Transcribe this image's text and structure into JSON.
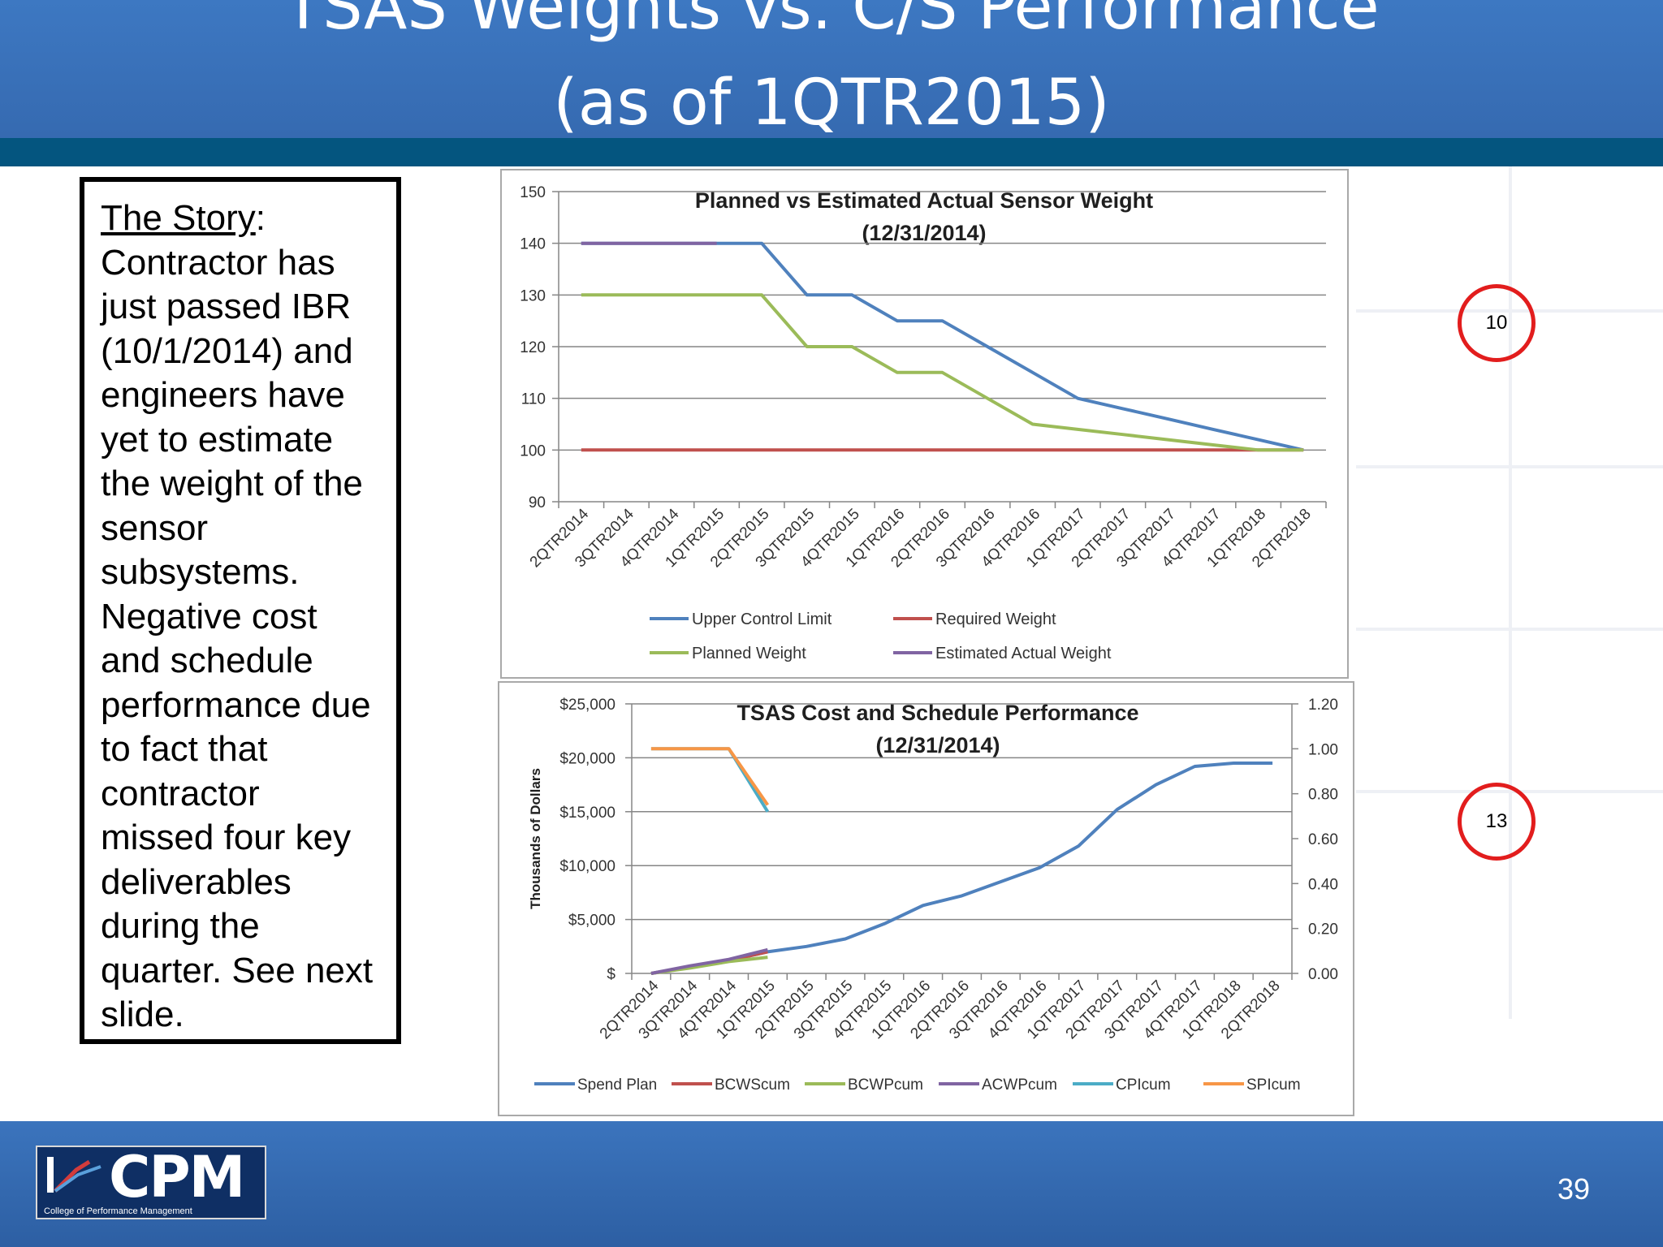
{
  "slide": {
    "title_line1": "TSAS Weights vs. C/S Performance",
    "title_line2": "(as of 1QTR2015)",
    "page_number": "39"
  },
  "story": {
    "heading": "The Story",
    "heading_suffix": ":",
    "body": "Contractor has just passed IBR (10/1/2014)  and engineers have yet to estimate the weight of the sensor subsystems. Negative cost and schedule performance due to fact that contractor missed four key deliverables during the quarter. See next slide."
  },
  "callouts": [
    "10",
    "13"
  ],
  "logo": {
    "text": "CPM",
    "subtext": "College of Performance Management"
  },
  "colors": {
    "header_blue": "#3d78c2",
    "band_teal": "#04557f",
    "callout_red": "#e21d1d",
    "upper_control": "#4f81bd",
    "required": "#c0504d",
    "planned": "#9bbb59",
    "estimated": "#8064a2",
    "cpi": "#4bacc6",
    "spi": "#f79646"
  },
  "chart_data": [
    {
      "type": "line",
      "title_line1": "Planned vs Estimated Actual Sensor Weight",
      "title_line2": "(12/31/2014)",
      "ylim": [
        90,
        150
      ],
      "yticks": [
        90,
        100,
        110,
        120,
        130,
        140,
        150
      ],
      "categories": [
        "2QTR2014",
        "3QTR2014",
        "4QTR2014",
        "1QTR2015",
        "2QTR2015",
        "3QTR2015",
        "4QTR2015",
        "1QTR2016",
        "2QTR2016",
        "3QTR2016",
        "4QTR2016",
        "1QTR2017",
        "2QTR2017",
        "3QTR2017",
        "4QTR2017",
        "1QTR2018",
        "2QTR2018"
      ],
      "legend_placement": "bottom",
      "grid": true,
      "series": [
        {
          "name": "Upper Control Limit",
          "color": "#4f81bd",
          "values": [
            140,
            140,
            140,
            140,
            140,
            130,
            130,
            125,
            125,
            120,
            115,
            110,
            108,
            106,
            104,
            102,
            100
          ]
        },
        {
          "name": "Required Weight",
          "color": "#c0504d",
          "values": [
            100,
            100,
            100,
            100,
            100,
            100,
            100,
            100,
            100,
            100,
            100,
            100,
            100,
            100,
            100,
            100,
            100
          ]
        },
        {
          "name": "Planned Weight",
          "color": "#9bbb59",
          "values": [
            130,
            130,
            130,
            130,
            130,
            120,
            120,
            115,
            115,
            110,
            105,
            104,
            103,
            102,
            101,
            100,
            100
          ]
        },
        {
          "name": "Estimated Actual Weight",
          "color": "#8064a2",
          "values": [
            140,
            140,
            140,
            140,
            null,
            null,
            null,
            null,
            null,
            null,
            null,
            null,
            null,
            null,
            null,
            null,
            null
          ]
        }
      ]
    },
    {
      "type": "line",
      "title_line1": "TSAS Cost and Schedule Performance",
      "title_line2": "(12/31/2014)",
      "ylabel": "Thousands of Dollars",
      "ylim": [
        0,
        25000
      ],
      "yticks": [
        "$",
        "$5,000",
        "$10,000",
        "$15,000",
        "$20,000",
        "$25,000"
      ],
      "y2lim": [
        0,
        1.2
      ],
      "y2ticks": [
        "0.00",
        "0.20",
        "0.40",
        "0.60",
        "0.80",
        "1.00",
        "1.20"
      ],
      "categories": [
        "2QTR2014",
        "3QTR2014",
        "4QTR2014",
        "1QTR2015",
        "2QTR2015",
        "3QTR2015",
        "4QTR2015",
        "1QTR2016",
        "2QTR2016",
        "3QTR2016",
        "4QTR2016",
        "1QTR2017",
        "2QTR2017",
        "3QTR2017",
        "4QTR2017",
        "1QTR2018",
        "2QTR2018"
      ],
      "legend_placement": "bottom",
      "grid": true,
      "series": [
        {
          "name": "Spend Plan",
          "axis": "left",
          "color": "#4f81bd",
          "values": [
            0,
            600,
            1200,
            2000,
            2500,
            3200,
            4600,
            6300,
            7200,
            8500,
            9800,
            11800,
            15200,
            17500,
            19200,
            19500,
            19500
          ]
        },
        {
          "name": "BCWScum",
          "axis": "left",
          "color": "#c0504d",
          "values": [
            0,
            600,
            1200,
            2000,
            null,
            null,
            null,
            null,
            null,
            null,
            null,
            null,
            null,
            null,
            null,
            null,
            null
          ]
        },
        {
          "name": "BCWPcum",
          "axis": "left",
          "color": "#9bbb59",
          "values": [
            0,
            500,
            1100,
            1500,
            null,
            null,
            null,
            null,
            null,
            null,
            null,
            null,
            null,
            null,
            null,
            null,
            null
          ]
        },
        {
          "name": "ACWPcum",
          "axis": "left",
          "color": "#8064a2",
          "values": [
            0,
            700,
            1300,
            2200,
            null,
            null,
            null,
            null,
            null,
            null,
            null,
            null,
            null,
            null,
            null,
            null,
            null
          ]
        },
        {
          "name": "CPIcum",
          "axis": "right",
          "color": "#4bacc6",
          "values": [
            1.0,
            1.0,
            1.0,
            0.72,
            null,
            null,
            null,
            null,
            null,
            null,
            null,
            null,
            null,
            null,
            null,
            null,
            null
          ]
        },
        {
          "name": "SPIcum",
          "axis": "right",
          "color": "#f79646",
          "values": [
            1.0,
            1.0,
            1.0,
            0.75,
            null,
            null,
            null,
            null,
            null,
            null,
            null,
            null,
            null,
            null,
            null,
            null,
            null
          ]
        }
      ]
    }
  ]
}
